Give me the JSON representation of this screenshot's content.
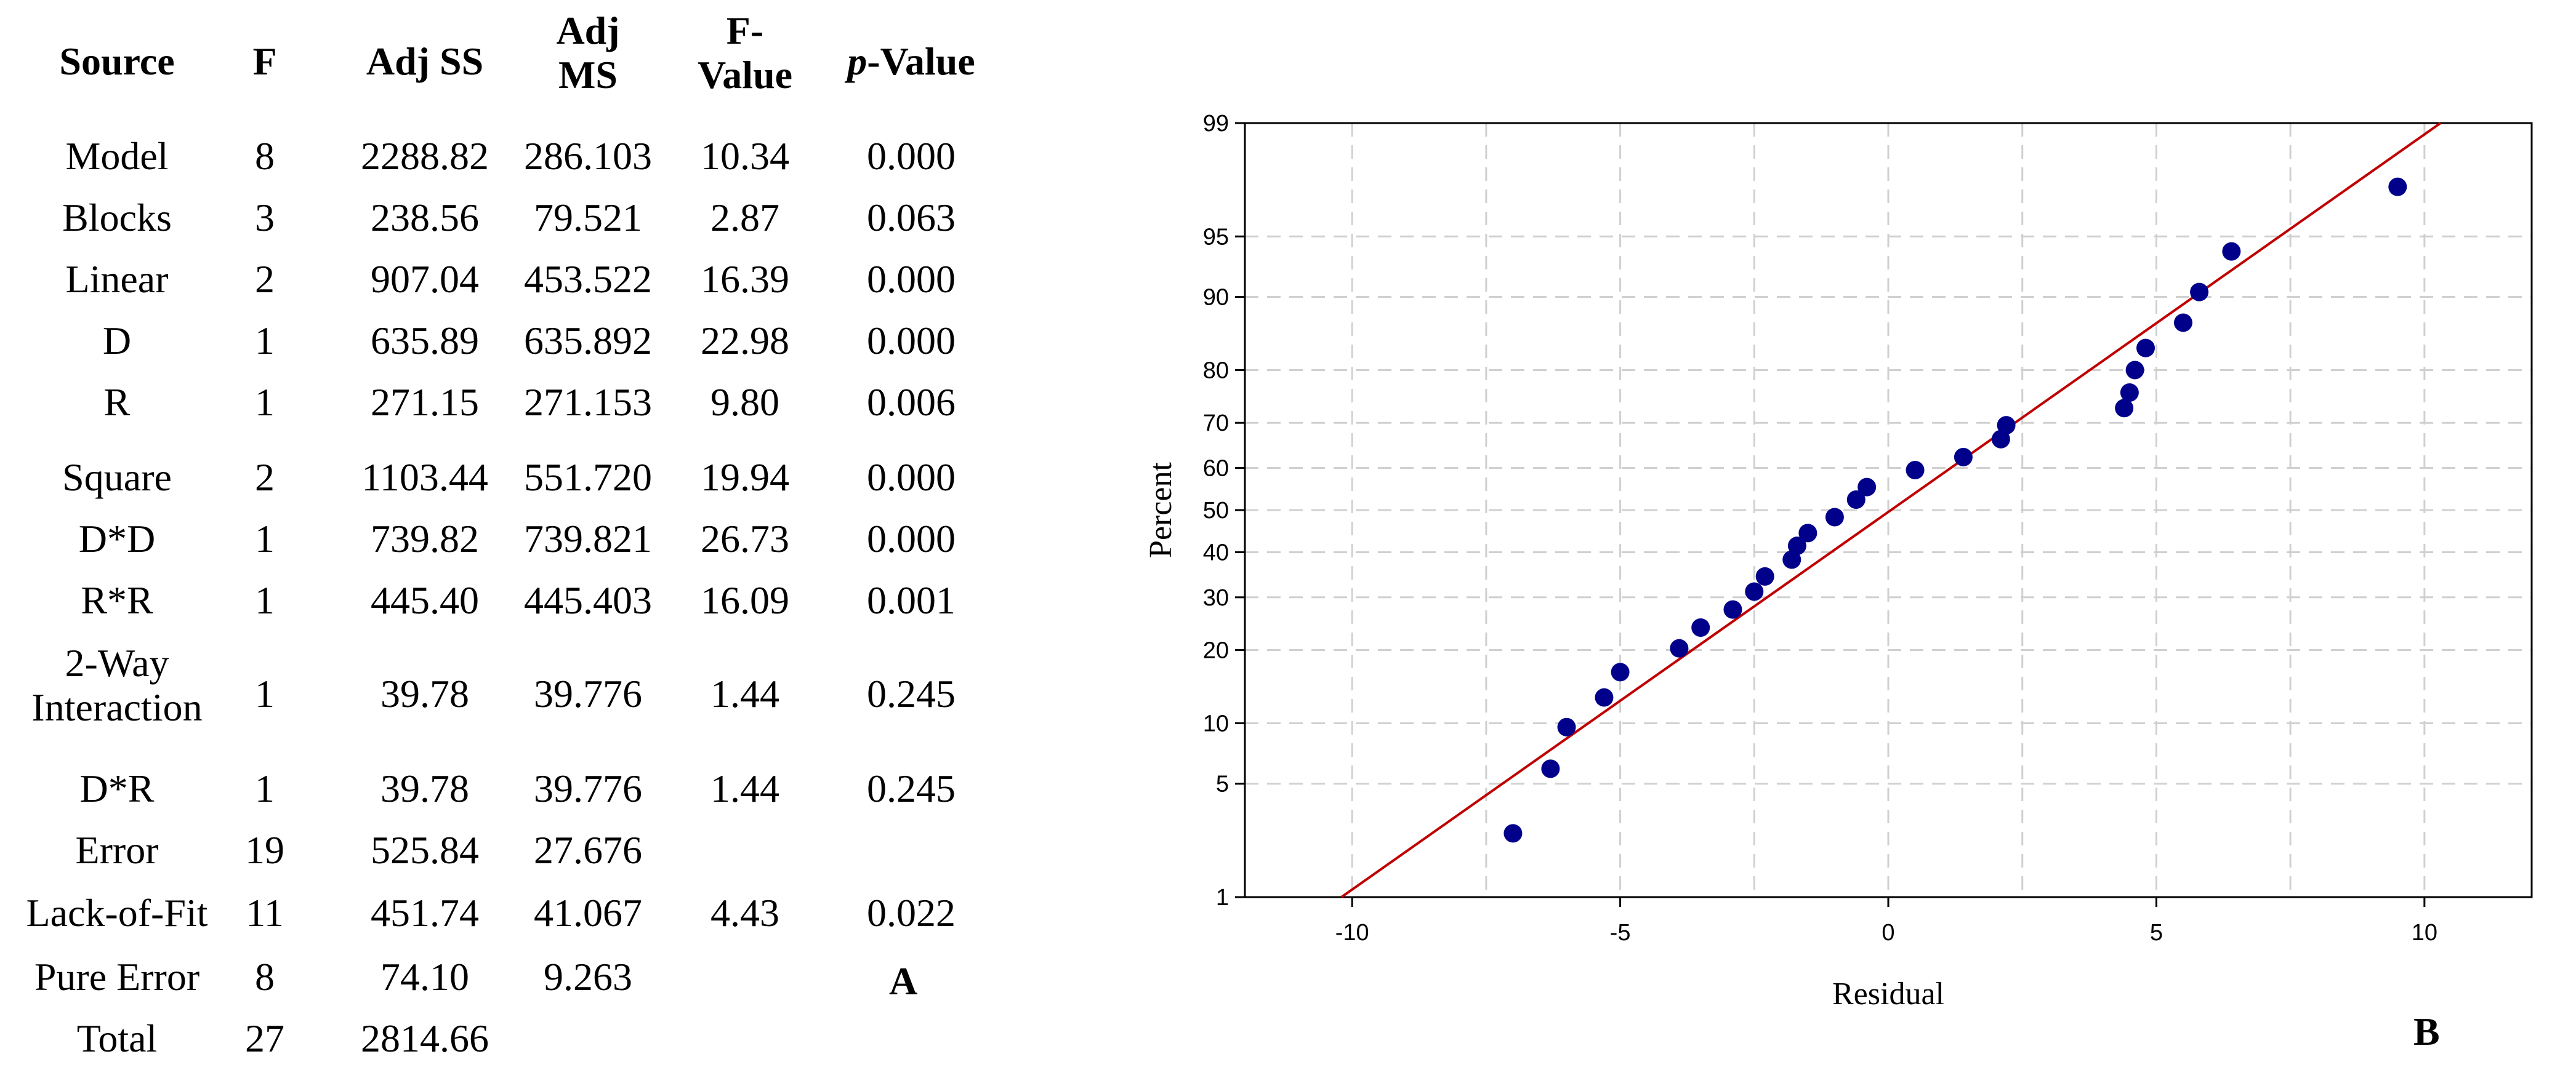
{
  "table": {
    "headers": {
      "source": "Source",
      "f": "F",
      "adj_ss": "Adj SS",
      "adj_ms_1": "Adj",
      "adj_ms_2": "MS",
      "f_value_1": "F-",
      "f_value_2": "Value",
      "p_value_italic": "p",
      "p_value_rest": "-Value"
    },
    "rows": [
      {
        "source": "Model",
        "f": "8",
        "adj_ss": "2288.82",
        "adj_ms": "286.103",
        "f_value": "10.34",
        "p_value": "0.000"
      },
      {
        "source": "Blocks",
        "f": "3",
        "adj_ss": "238.56",
        "adj_ms": "79.521",
        "f_value": "2.87",
        "p_value": "0.063"
      },
      {
        "source": "Linear",
        "f": "2",
        "adj_ss": "907.04",
        "adj_ms": "453.522",
        "f_value": "16.39",
        "p_value": "0.000"
      },
      {
        "source": "D",
        "f": "1",
        "adj_ss": "635.89",
        "adj_ms": "635.892",
        "f_value": "22.98",
        "p_value": "0.000"
      },
      {
        "source": "R",
        "f": "1",
        "adj_ss": "271.15",
        "adj_ms": "271.153",
        "f_value": "9.80",
        "p_value": "0.006"
      },
      {
        "source": "Square",
        "f": "2",
        "adj_ss": "1103.44",
        "adj_ms": "551.720",
        "f_value": "19.94",
        "p_value": "0.000"
      },
      {
        "source": "D*D",
        "f": "1",
        "adj_ss": "739.82",
        "adj_ms": "739.821",
        "f_value": "26.73",
        "p_value": "0.000"
      },
      {
        "source": "R*R",
        "f": "1",
        "adj_ss": "445.40",
        "adj_ms": "445.403",
        "f_value": "16.09",
        "p_value": "0.001"
      },
      {
        "source_1": "2-Way",
        "source_2": "Interaction",
        "f": "1",
        "adj_ss": "39.78",
        "adj_ms": "39.776",
        "f_value": "1.44",
        "p_value": "0.245"
      },
      {
        "source": "D*R",
        "f": "1",
        "adj_ss": "39.78",
        "adj_ms": "39.776",
        "f_value": "1.44",
        "p_value": "0.245"
      },
      {
        "source": "Error",
        "f": "19",
        "adj_ss": "525.84",
        "adj_ms": "27.676",
        "f_value": "",
        "p_value": ""
      },
      {
        "source": "Lack-of-Fit",
        "f": "11",
        "adj_ss": "451.74",
        "adj_ms": "41.067",
        "f_value": "4.43",
        "p_value": "0.022"
      },
      {
        "source": "Pure Error",
        "f": "8",
        "adj_ss": "74.10",
        "adj_ms": "9.263",
        "f_value": "",
        "p_value": ""
      },
      {
        "source": "Total",
        "f": "27",
        "adj_ss": "2814.66",
        "adj_ms": "",
        "f_value": "",
        "p_value": ""
      }
    ],
    "panel_label": "A"
  },
  "chart_data": {
    "type": "scatter",
    "title": "",
    "xlabel": "Residual",
    "ylabel": "Percent",
    "xlim": [
      -12,
      12
    ],
    "x_ticks": [
      -10,
      -5,
      0,
      5,
      10
    ],
    "y_ticks": [
      1,
      5,
      10,
      20,
      30,
      40,
      50,
      60,
      70,
      80,
      90,
      95,
      99
    ],
    "y_scale": "normal-probability",
    "grid": true,
    "point_color": "#00008b",
    "fit_line_color": "#c00000",
    "fit_line": [
      {
        "x": -10.2,
        "y": 1
      },
      {
        "x": 10.3,
        "y": 99
      }
    ],
    "points": [
      {
        "x": -7.0,
        "y": 2.6
      },
      {
        "x": -6.3,
        "y": 6.0
      },
      {
        "x": -6.0,
        "y": 9.6
      },
      {
        "x": -5.3,
        "y": 13.0
      },
      {
        "x": -5.0,
        "y": 16.5
      },
      {
        "x": -3.9,
        "y": 20.3
      },
      {
        "x": -3.5,
        "y": 24.0
      },
      {
        "x": -2.9,
        "y": 27.5
      },
      {
        "x": -2.5,
        "y": 31.2
      },
      {
        "x": -2.3,
        "y": 34.5
      },
      {
        "x": -1.8,
        "y": 38.3
      },
      {
        "x": -1.7,
        "y": 41.5
      },
      {
        "x": -1.5,
        "y": 44.5
      },
      {
        "x": -1.0,
        "y": 48.3
      },
      {
        "x": -0.6,
        "y": 52.5
      },
      {
        "x": -0.4,
        "y": 55.5
      },
      {
        "x": 0.5,
        "y": 59.5
      },
      {
        "x": 1.4,
        "y": 62.5
      },
      {
        "x": 2.1,
        "y": 66.5
      },
      {
        "x": 2.2,
        "y": 69.5
      },
      {
        "x": 4.4,
        "y": 73.0
      },
      {
        "x": 4.5,
        "y": 76.0
      },
      {
        "x": 4.6,
        "y": 80.0
      },
      {
        "x": 4.8,
        "y": 83.5
      },
      {
        "x": 5.5,
        "y": 87.0
      },
      {
        "x": 5.8,
        "y": 90.5
      },
      {
        "x": 6.4,
        "y": 94.0
      },
      {
        "x": 9.5,
        "y": 97.4
      }
    ],
    "panel_label": "B"
  }
}
